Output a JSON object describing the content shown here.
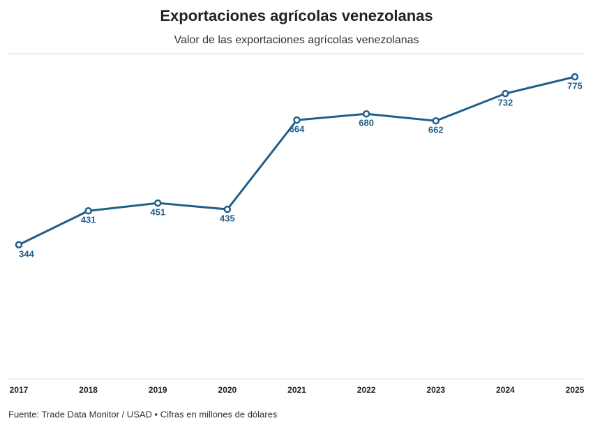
{
  "chart_data": {
    "type": "line",
    "title": "Exportaciones agrícolas venezolanas",
    "subtitle": "Valor de las exportaciones agrícolas venezolanas",
    "source": "Fuente: Trade Data Monitor / USAD • Cifras en millones de dólares",
    "categories": [
      "2017",
      "2018",
      "2019",
      "2020",
      "2021",
      "2022",
      "2023",
      "2024",
      "2025"
    ],
    "series": [
      {
        "color": "#1f5f8b",
        "values": [
          344,
          431,
          451,
          435,
          664,
          680,
          662,
          732,
          775
        ]
      }
    ],
    "ylim": [
      0,
      820
    ]
  }
}
